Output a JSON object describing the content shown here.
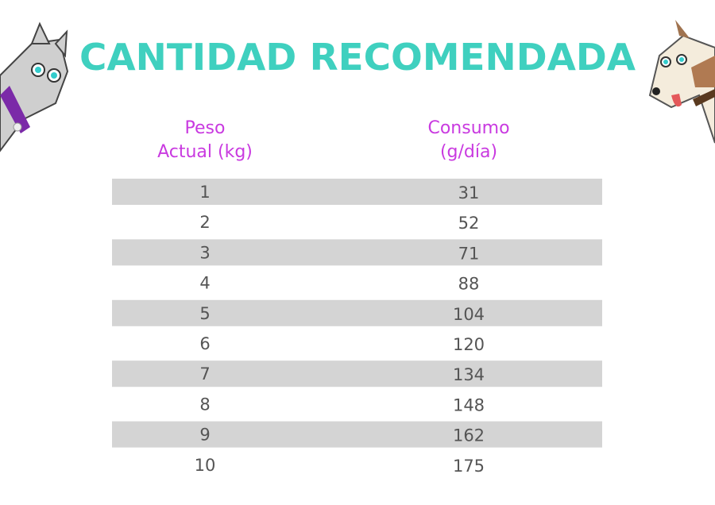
{
  "header": {
    "title": "CANTIDAD RECOMENDADA"
  },
  "table": {
    "columns": [
      [
        "Peso",
        "Actual (kg)"
      ],
      [
        "Consumo",
        "(g/día)"
      ]
    ],
    "rows": [
      [
        1,
        31
      ],
      [
        2,
        52
      ],
      [
        3,
        71
      ],
      [
        4,
        88
      ],
      [
        5,
        104
      ],
      [
        6,
        120
      ],
      [
        7,
        134
      ],
      [
        8,
        148
      ],
      [
        9,
        162
      ],
      [
        10,
        175
      ]
    ]
  }
}
